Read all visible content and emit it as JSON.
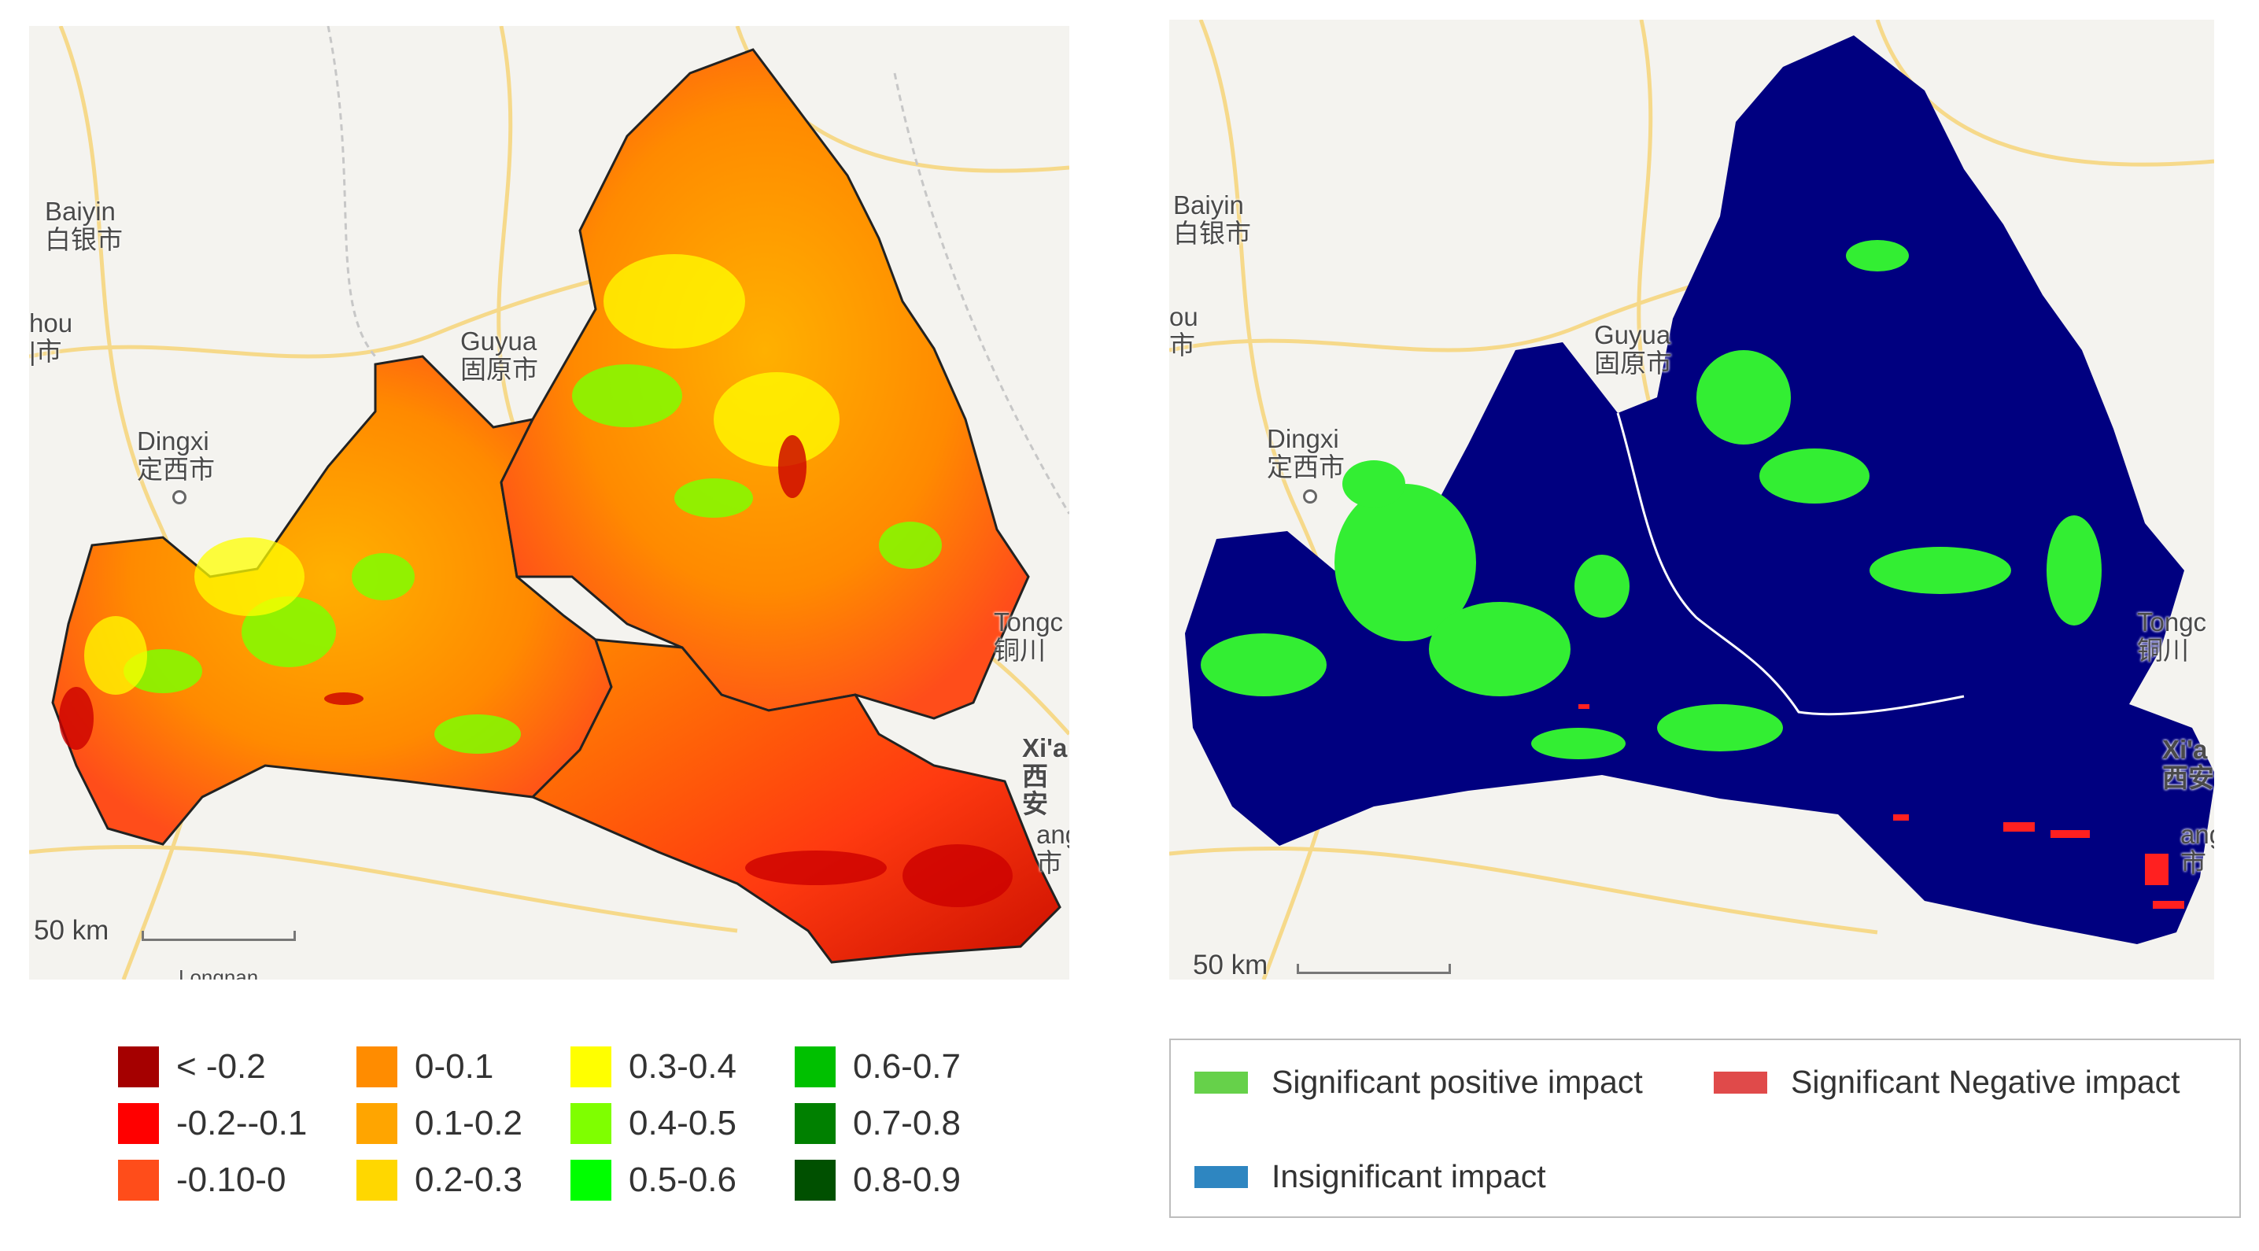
{
  "left_map": {
    "places": [
      {
        "name": "Baiyin",
        "cn": "白银市"
      },
      {
        "name": "hou",
        "cn": "|市"
      },
      {
        "name": "Guyua",
        "cn": "固原市"
      },
      {
        "name": "Dingxi",
        "cn": "定西市"
      },
      {
        "name": "Tongc",
        "cn": "铜川"
      },
      {
        "name": "Xi'a",
        "cn": "西安"
      },
      {
        "name": "ang",
        "cn": "市"
      }
    ],
    "partial_label": "Longnan",
    "scale_label": "50 km"
  },
  "right_map": {
    "places": [
      {
        "name": "Baiyin",
        "cn": "白银市"
      },
      {
        "name": "ou",
        "cn": "市"
      },
      {
        "name": "Guyua",
        "cn": "固原市"
      },
      {
        "name": "Dingxi",
        "cn": "定西市"
      },
      {
        "name": "Tongc",
        "cn": "铜川"
      },
      {
        "name": "Xi'a",
        "cn": "西安"
      },
      {
        "name": "ang",
        "cn": "市"
      }
    ],
    "scale_label": "50 km"
  },
  "legend_left": [
    {
      "label": "< -0.2",
      "color": "#a50000"
    },
    {
      "label": "-0.2--0.1",
      "color": "#ff0000"
    },
    {
      "label": "-0.10-0",
      "color": "#ff4d1a"
    },
    {
      "label": "0-0.1",
      "color": "#ff8c00"
    },
    {
      "label": "0.1-0.2",
      "color": "#ffa500"
    },
    {
      "label": "0.2-0.3",
      "color": "#ffd700"
    },
    {
      "label": "0.3-0.4",
      "color": "#ffff00"
    },
    {
      "label": "0.4-0.5",
      "color": "#7fff00"
    },
    {
      "label": "0.5-0.6",
      "color": "#00ff00"
    },
    {
      "label": "0.6-0.7",
      "color": "#00c000"
    },
    {
      "label": "0.7-0.8",
      "color": "#008000"
    },
    {
      "label": "0.8-0.9",
      "color": "#005000"
    }
  ],
  "legend_right": [
    {
      "label": "Significant positive impact",
      "color": "#66d14a"
    },
    {
      "label": "Significant Negative impact",
      "color": "#e04a4a"
    },
    {
      "label": "Insignificant impact",
      "color": "#2e86c1"
    }
  ],
  "colors": {
    "map_background": "#f4f3ef",
    "basin_dark_blue": "#000080",
    "road": "#f5d76e",
    "water": "#aad3df"
  }
}
